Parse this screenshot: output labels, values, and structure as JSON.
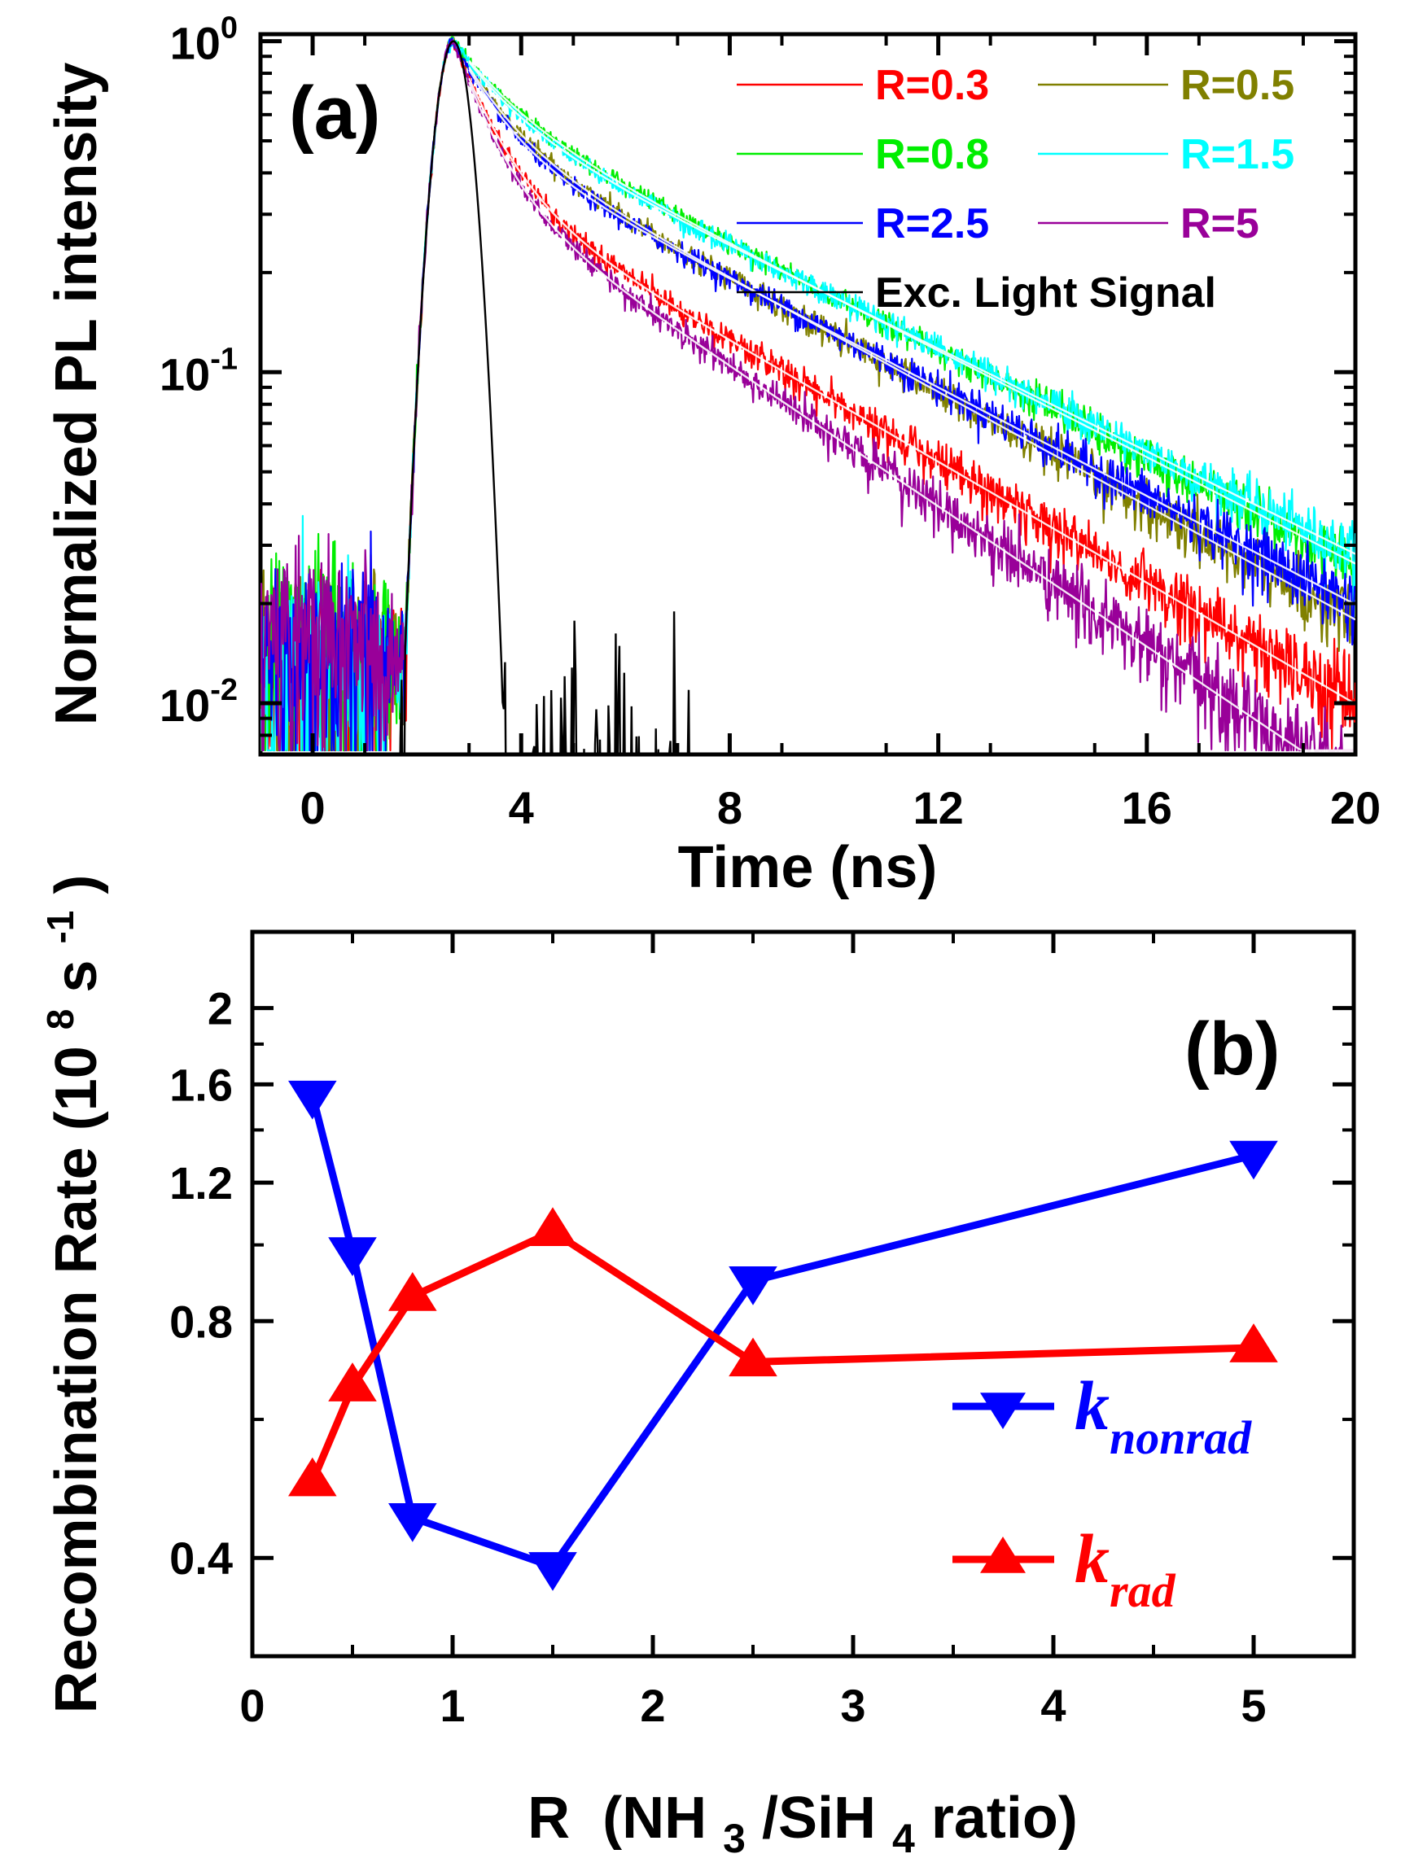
{
  "chart_data": [
    {
      "type": "line",
      "panel": "(a)",
      "xlabel": "Time (ns)",
      "ylabel": "Normalized PL intensity",
      "xlim": [
        -1,
        20
      ],
      "ylim": [
        0.007,
        1.05
      ],
      "yscale": "log",
      "xticks": [
        0,
        4,
        8,
        12,
        16,
        20
      ],
      "xtick_labels": [
        "0",
        "4",
        "8",
        "12",
        "16",
        "20"
      ],
      "yticks": [
        {
          "value": 1,
          "base": "10",
          "exp": "0"
        },
        {
          "value": 0.1,
          "base": "10",
          "exp": "-1"
        },
        {
          "value": 0.01,
          "base": "10",
          "exp": "-2"
        }
      ],
      "excitation": {
        "name": "Exc. Light Signal",
        "color": "#000000",
        "peak_time": 2.7,
        "rise_width": 0.45,
        "decay_width": 0.42
      },
      "series": [
        {
          "name": "R=0.3",
          "color": "#ff0000",
          "a1": 0.62,
          "tau1": 0.75,
          "a2": 0.38,
          "tau2": 4.75
        },
        {
          "name": "R=0.5",
          "color": "#808000",
          "a1": 0.45,
          "tau1": 0.85,
          "a2": 0.55,
          "tau2": 5.05
        },
        {
          "name": "R=0.8",
          "color": "#00ee00",
          "a1": 0.35,
          "tau1": 1.0,
          "a2": 0.65,
          "tau2": 5.4
        },
        {
          "name": "R=1.5",
          "color": "#00ffff",
          "a1": 0.38,
          "tau1": 0.95,
          "a2": 0.62,
          "tau2": 5.6
        },
        {
          "name": "R=2.5",
          "color": "#0000ff",
          "a1": 0.48,
          "tau1": 0.8,
          "a2": 0.52,
          "tau2": 5.3
        },
        {
          "name": "R=5",
          "color": "#990099",
          "a1": 0.62,
          "tau1": 0.68,
          "a2": 0.38,
          "tau2": 4.1
        }
      ]
    },
    {
      "type": "line",
      "panel": "(b)",
      "xlabel_main": "R",
      "xlabel_paren": "(NH",
      "xlabel_sub1": "3",
      "xlabel_mid": "/SiH",
      "xlabel_sub2": "4",
      "xlabel_end": " ratio)",
      "ylabel_main": "Recombination Rate (10",
      "ylabel_sup": "8",
      "ylabel_unit": " s",
      "ylabel_unit_sup": "-1",
      "ylabel_close": ")",
      "xlim": [
        0,
        5.5
      ],
      "ylim": [
        0.3,
        2.5
      ],
      "yscale": "log",
      "xticks": [
        0,
        1,
        2,
        3,
        4,
        5
      ],
      "xtick_labels": [
        "0",
        "1",
        "2",
        "3",
        "4",
        "5"
      ],
      "yticks": [
        0.4,
        0.8,
        1.2,
        1.6,
        2
      ],
      "ytick_labels": [
        "0.4",
        "0.8",
        "1.2",
        "1.6",
        "2"
      ],
      "x": [
        0.3,
        0.5,
        0.8,
        1.5,
        2.5,
        5
      ],
      "series": [
        {
          "name": "k_nonrad",
          "label_main": "k",
          "label_sub": "nonrad",
          "color": "#0000ff",
          "marker": "triangle-down",
          "values": [
            1.55,
            0.98,
            0.45,
            0.39,
            0.9,
            1.3
          ]
        },
        {
          "name": "k_rad",
          "label_main": "k",
          "label_sub": "rad",
          "color": "#ff0000",
          "marker": "triangle-up",
          "values": [
            0.5,
            0.66,
            0.86,
            1.04,
            0.71,
            0.74
          ]
        }
      ]
    }
  ]
}
